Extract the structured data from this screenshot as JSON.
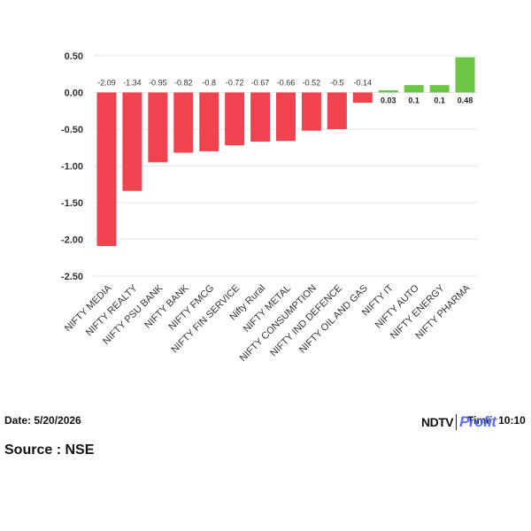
{
  "chart_data": {
    "type": "bar",
    "categories": [
      "NIFTY MEDIA",
      "NIFTY REALTY",
      "NIFTY PSU BANK",
      "NIFTY BANK",
      "NIFTY FMCG",
      "NIFTY FIN SERVICE",
      "Nifty Rural",
      "NIFTY METAL",
      "NIFTY CONSUMPTION",
      "NIFTY IND DEFENCE",
      "NIFTY OIL AND GAS",
      "NIFTY IT",
      "NIFTY AUTO",
      "NIFTY ENERGY",
      "NIFTY PHARMA"
    ],
    "values": [
      -2.09,
      -1.34,
      -0.95,
      -0.82,
      -0.8,
      -0.72,
      -0.67,
      -0.66,
      -0.52,
      -0.5,
      -0.14,
      0.03,
      0.1,
      0.1,
      0.48
    ],
    "value_labels": [
      "-2.09",
      "-1.34",
      "-0.95",
      "-0.82",
      "-0.8",
      "-0.72",
      "-0.67",
      "-0.66",
      "-0.52",
      "-0.5",
      "-0.14",
      "0.03",
      "0.1",
      "0.1",
      "0.48"
    ],
    "yticks": [
      "0.50",
      "0.00",
      "-0.50",
      "-1.00",
      "-1.50",
      "-2.00",
      "-2.50"
    ],
    "ylim": [
      -2.5,
      0.5
    ],
    "grid": true,
    "colors": {
      "negative": "#f0434f",
      "positive": "#6cc644",
      "grid": "#e6e6e6"
    }
  },
  "footer": {
    "date": "Date: 5/20/2026",
    "time": "Time: 10:10",
    "source": "Source : NSE"
  },
  "logo": {
    "part1": "NDTV",
    "part2": "Profit"
  }
}
